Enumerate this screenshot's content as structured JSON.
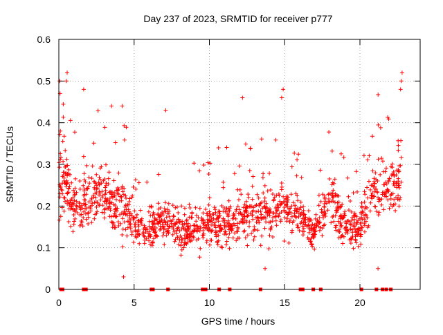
{
  "chart_data": {
    "type": "scatter",
    "title": "Day 237 of 2023, SRMTID for receiver p777",
    "xlabel": "GPS time / hours",
    "ylabel": "SRMTID / TECUs",
    "xlim": [
      0,
      24
    ],
    "ylim": [
      0,
      0.6
    ],
    "x_ticks": [
      0,
      5,
      10,
      15,
      20
    ],
    "x_tick_labels": [
      "0",
      "5",
      "10",
      "15",
      "20"
    ],
    "y_ticks": [
      0,
      0.1,
      0.2,
      0.3,
      0.4,
      0.5,
      0.6
    ],
    "y_tick_labels": [
      "0",
      "0.1",
      "0.2",
      "0.3",
      "0.4",
      "0.5",
      "0.6"
    ],
    "grid": true,
    "marker": "+",
    "series_color": "#ff0000",
    "baseline_markers_x": [
      0.15,
      0.25,
      1.65,
      1.8,
      6.15,
      6.25,
      7.25,
      9.55,
      9.65,
      9.75,
      10.65,
      11.35,
      13.4,
      16.05,
      16.2,
      16.9,
      17.4,
      20.1,
      21.1,
      21.5,
      21.75,
      22.05
    ]
  }
}
